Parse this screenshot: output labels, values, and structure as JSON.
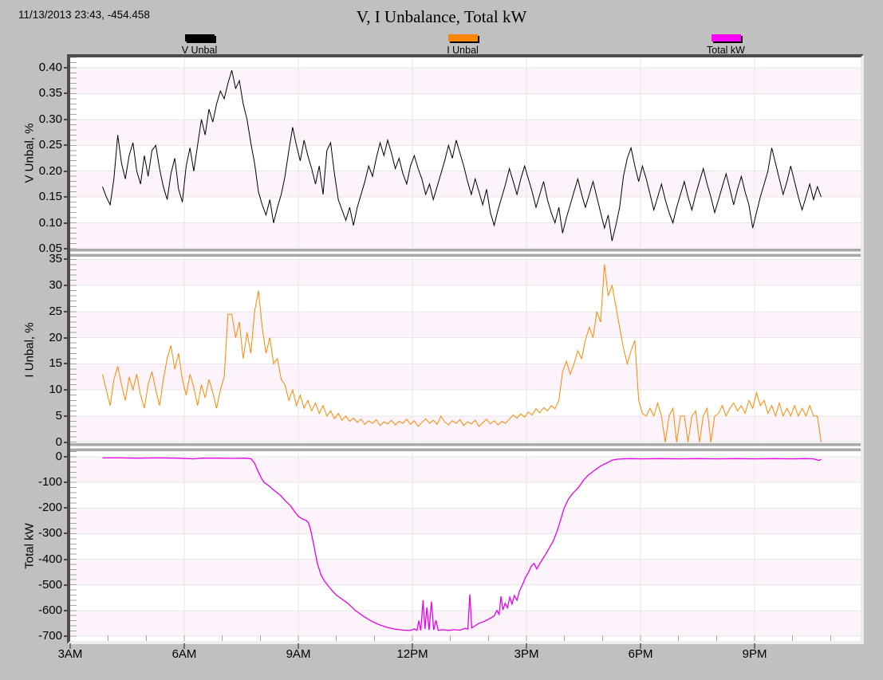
{
  "readout": {
    "text": "11/13/2013 23:43, -454.458"
  },
  "title": "V, I Unbalance, Total kW",
  "legend": {
    "items": [
      {
        "label": "V Unbal",
        "color": "#000000"
      },
      {
        "label": "I Unbal",
        "color": "#ff8600"
      },
      {
        "label": "Total kW",
        "color": "#ff00ff"
      }
    ]
  },
  "chart_data": {
    "type": "line",
    "title": "V, I Unbalance, Total kW",
    "band_colors": [
      "#fcf4fa",
      "#ffffff"
    ],
    "grid": true,
    "x_axis": {
      "unit": "time of day",
      "range_hours": [
        3,
        23.79
      ],
      "minor_step_hours": 1,
      "ticks": [
        {
          "h": 3,
          "label": "3AM"
        },
        {
          "h": 6,
          "label": "6AM"
        },
        {
          "h": 9,
          "label": "9AM"
        },
        {
          "h": 12,
          "label": "12PM"
        },
        {
          "h": 15,
          "label": "3PM"
        },
        {
          "h": 18,
          "label": "6PM"
        },
        {
          "h": 21,
          "label": "9PM"
        }
      ]
    },
    "panels": [
      {
        "name": "v-unbal",
        "ylabel": "V Unbal, %",
        "series_name": "V Unbal",
        "color": "#000000",
        "line_width": 1,
        "ylim": [
          0.05,
          0.42
        ],
        "minor_tick_step": 0.01,
        "yticks": [
          {
            "v": 0.4,
            "label": "0.40"
          },
          {
            "v": 0.35,
            "label": "0.35"
          },
          {
            "v": 0.3,
            "label": "0.30"
          },
          {
            "v": 0.25,
            "label": "0.25"
          },
          {
            "v": 0.2,
            "label": "0.20"
          },
          {
            "v": 0.15,
            "label": "0.15"
          },
          {
            "v": 0.1,
            "label": "0.10"
          },
          {
            "v": 0.05,
            "label": "0.05"
          }
        ],
        "series": {
          "t0": 3.85,
          "dt": 0.1,
          "values": [
            0.17,
            0.15,
            0.135,
            0.185,
            0.27,
            0.215,
            0.185,
            0.23,
            0.255,
            0.2,
            0.175,
            0.23,
            0.19,
            0.24,
            0.25,
            0.205,
            0.17,
            0.145,
            0.195,
            0.225,
            0.165,
            0.14,
            0.21,
            0.245,
            0.2,
            0.25,
            0.3,
            0.27,
            0.32,
            0.295,
            0.33,
            0.355,
            0.34,
            0.37,
            0.395,
            0.36,
            0.375,
            0.33,
            0.3,
            0.255,
            0.215,
            0.16,
            0.135,
            0.115,
            0.145,
            0.1,
            0.13,
            0.155,
            0.19,
            0.24,
            0.285,
            0.25,
            0.22,
            0.26,
            0.23,
            0.205,
            0.175,
            0.21,
            0.155,
            0.24,
            0.255,
            0.195,
            0.145,
            0.125,
            0.105,
            0.13,
            0.095,
            0.13,
            0.155,
            0.18,
            0.21,
            0.19,
            0.225,
            0.255,
            0.23,
            0.26,
            0.235,
            0.205,
            0.225,
            0.195,
            0.175,
            0.21,
            0.23,
            0.205,
            0.185,
            0.155,
            0.175,
            0.145,
            0.17,
            0.195,
            0.22,
            0.25,
            0.225,
            0.26,
            0.235,
            0.21,
            0.18,
            0.155,
            0.185,
            0.16,
            0.135,
            0.165,
            0.12,
            0.095,
            0.125,
            0.15,
            0.175,
            0.205,
            0.18,
            0.155,
            0.185,
            0.21,
            0.185,
            0.16,
            0.13,
            0.155,
            0.18,
            0.145,
            0.12,
            0.1,
            0.13,
            0.08,
            0.11,
            0.135,
            0.16,
            0.185,
            0.155,
            0.13,
            0.155,
            0.18,
            0.15,
            0.12,
            0.09,
            0.115,
            0.065,
            0.095,
            0.13,
            0.19,
            0.225,
            0.245,
            0.21,
            0.18,
            0.21,
            0.185,
            0.155,
            0.125,
            0.15,
            0.175,
            0.145,
            0.12,
            0.1,
            0.13,
            0.155,
            0.18,
            0.15,
            0.125,
            0.155,
            0.18,
            0.205,
            0.175,
            0.15,
            0.12,
            0.145,
            0.17,
            0.195,
            0.165,
            0.135,
            0.165,
            0.19,
            0.16,
            0.135,
            0.09,
            0.12,
            0.15,
            0.175,
            0.2,
            0.245,
            0.215,
            0.185,
            0.155,
            0.18,
            0.21,
            0.18,
            0.15,
            0.125,
            0.15,
            0.175,
            0.145,
            0.17,
            0.15
          ]
        }
      },
      {
        "name": "i-unbal",
        "ylabel": "I Unbal, %",
        "series_name": "I Unbal",
        "color": "#ff8600",
        "line_width": 1,
        "ylim": [
          -0.2,
          35.5
        ],
        "minor_tick_step": 1,
        "yticks": [
          {
            "v": 35,
            "label": "35"
          },
          {
            "v": 30,
            "label": "30"
          },
          {
            "v": 25,
            "label": "25"
          },
          {
            "v": 20,
            "label": "20"
          },
          {
            "v": 15,
            "label": "15"
          },
          {
            "v": 10,
            "label": "10"
          },
          {
            "v": 5,
            "label": "5"
          },
          {
            "v": 0,
            "label": "0"
          }
        ],
        "series": {
          "t0": 3.85,
          "dt": 0.1,
          "values": [
            13,
            10,
            7,
            12,
            14.5,
            11,
            8,
            12.5,
            10,
            13,
            9,
            6.5,
            11,
            13.5,
            10,
            7,
            12,
            16,
            18.5,
            14,
            17,
            12,
            9,
            13,
            10.5,
            7,
            11,
            8.5,
            12,
            9.5,
            6.5,
            10,
            12.5,
            24.5,
            24.5,
            20,
            23,
            16,
            21,
            17,
            25,
            29,
            22,
            17,
            20,
            15,
            16,
            12,
            11,
            8,
            10,
            7,
            9,
            6.5,
            8,
            6,
            7.5,
            5.5,
            7,
            5,
            6,
            4.5,
            5.5,
            4.2,
            5,
            4,
            4.6,
            3.8,
            4.4,
            3.4,
            4.1,
            3.6,
            4.3,
            3.2,
            3.9,
            3.5,
            4.2,
            3.3,
            4.0,
            3.6,
            4.4,
            3.4,
            4.1,
            3.0,
            3.8,
            4.5,
            3.6,
            4.2,
            3.4,
            5.0,
            3.9,
            3.3,
            4.1,
            3.6,
            4.3,
            3.2,
            3.9,
            3.5,
            4.2,
            3.0,
            3.7,
            4.4,
            3.5,
            4.1,
            3.3,
            4.0,
            3.6,
            4.4,
            5.2,
            4.6,
            5.4,
            4.8,
            5.8,
            5.2,
            6.4,
            5.6,
            6.6,
            6.0,
            7.0,
            6.4,
            8.0,
            13.5,
            15.5,
            13,
            15,
            17.5,
            16,
            19.5,
            22,
            20,
            25,
            23,
            34,
            28,
            30,
            26,
            22,
            18,
            15,
            17.5,
            19.5,
            8,
            5.5,
            5,
            6.5,
            5,
            7.5,
            5,
            0,
            5,
            6.5,
            0,
            5,
            5,
            0,
            5,
            6,
            0,
            5,
            6.5,
            0,
            5,
            5.5,
            7,
            5,
            6.5,
            7.5,
            6,
            7,
            5.5,
            8,
            6.5,
            9.5,
            7,
            8,
            5.5,
            7,
            5,
            7.5,
            5,
            6.5,
            5,
            7,
            5,
            6.5,
            5,
            7,
            5,
            5,
            0
          ]
        }
      },
      {
        "name": "total-kw",
        "ylabel": "Total kW",
        "series_name": "Total kW",
        "color": "#e800e8",
        "line_width": 1.3,
        "ylim": [
          -719,
          22
        ],
        "minor_tick_step": 20,
        "yticks": [
          {
            "v": 0,
            "label": "0"
          },
          {
            "v": -100,
            "label": "-100"
          },
          {
            "v": -200,
            "label": "-200"
          },
          {
            "v": -300,
            "label": "-300"
          },
          {
            "v": -400,
            "label": "-400"
          },
          {
            "v": -500,
            "label": "-500"
          },
          {
            "v": -600,
            "label": "-600"
          },
          {
            "v": -700,
            "label": "-700"
          }
        ],
        "series": {
          "points": [
            [
              3.85,
              -4
            ],
            [
              4.3,
              -4
            ],
            [
              4.8,
              -5
            ],
            [
              5.3,
              -4
            ],
            [
              5.8,
              -5
            ],
            [
              6.25,
              -8
            ],
            [
              6.45,
              -5
            ],
            [
              6.9,
              -5
            ],
            [
              7.3,
              -6
            ],
            [
              7.6,
              -5
            ],
            [
              7.76,
              -8
            ],
            [
              7.85,
              -25
            ],
            [
              7.95,
              -60
            ],
            [
              8.03,
              -84
            ],
            [
              8.1,
              -100
            ],
            [
              8.2,
              -110
            ],
            [
              8.3,
              -123
            ],
            [
              8.42,
              -138
            ],
            [
              8.54,
              -152
            ],
            [
              8.66,
              -172
            ],
            [
              8.8,
              -192
            ],
            [
              8.9,
              -214
            ],
            [
              9.0,
              -232
            ],
            [
              9.1,
              -242
            ],
            [
              9.2,
              -248
            ],
            [
              9.27,
              -258
            ],
            [
              9.33,
              -290
            ],
            [
              9.4,
              -340
            ],
            [
              9.5,
              -417
            ],
            [
              9.6,
              -462
            ],
            [
              9.7,
              -488
            ],
            [
              9.8,
              -507
            ],
            [
              9.9,
              -524
            ],
            [
              10.0,
              -540
            ],
            [
              10.15,
              -556
            ],
            [
              10.3,
              -572
            ],
            [
              10.5,
              -600
            ],
            [
              10.7,
              -622
            ],
            [
              10.9,
              -640
            ],
            [
              11.1,
              -654
            ],
            [
              11.33,
              -666
            ],
            [
              11.55,
              -673
            ],
            [
              11.75,
              -677
            ],
            [
              11.95,
              -678
            ],
            [
              12.05,
              -672
            ],
            [
              12.12,
              -678
            ],
            [
              12.17,
              -640
            ],
            [
              12.22,
              -678
            ],
            [
              12.28,
              -560
            ],
            [
              12.33,
              -672
            ],
            [
              12.38,
              -588
            ],
            [
              12.44,
              -676
            ],
            [
              12.5,
              -565
            ],
            [
              12.56,
              -676
            ],
            [
              12.62,
              -638
            ],
            [
              12.68,
              -678
            ],
            [
              12.8,
              -675
            ],
            [
              12.95,
              -678
            ],
            [
              13.1,
              -675
            ],
            [
              13.25,
              -677
            ],
            [
              13.38,
              -670
            ],
            [
              13.46,
              -673
            ],
            [
              13.51,
              -537
            ],
            [
              13.56,
              -668
            ],
            [
              13.65,
              -660
            ],
            [
              13.75,
              -650
            ],
            [
              13.85,
              -645
            ],
            [
              13.95,
              -638
            ],
            [
              14.05,
              -630
            ],
            [
              14.15,
              -622
            ],
            [
              14.22,
              -600
            ],
            [
              14.28,
              -615
            ],
            [
              14.33,
              -545
            ],
            [
              14.38,
              -598
            ],
            [
              14.44,
              -572
            ],
            [
              14.5,
              -590
            ],
            [
              14.56,
              -548
            ],
            [
              14.62,
              -575
            ],
            [
              14.68,
              -542
            ],
            [
              14.75,
              -560
            ],
            [
              14.82,
              -522
            ],
            [
              14.9,
              -498
            ],
            [
              14.97,
              -472
            ],
            [
              15.05,
              -452
            ],
            [
              15.12,
              -428
            ],
            [
              15.2,
              -416
            ],
            [
              15.27,
              -438
            ],
            [
              15.34,
              -420
            ],
            [
              15.42,
              -400
            ],
            [
              15.5,
              -382
            ],
            [
              15.6,
              -356
            ],
            [
              15.7,
              -330
            ],
            [
              15.8,
              -292
            ],
            [
              15.9,
              -246
            ],
            [
              15.99,
              -200
            ],
            [
              16.1,
              -166
            ],
            [
              16.22,
              -142
            ],
            [
              16.36,
              -121
            ],
            [
              16.5,
              -92
            ],
            [
              16.62,
              -72
            ],
            [
              16.78,
              -54
            ],
            [
              16.95,
              -36
            ],
            [
              17.05,
              -28
            ],
            [
              17.14,
              -22
            ],
            [
              17.25,
              -13
            ],
            [
              17.4,
              -9
            ],
            [
              17.7,
              -7
            ],
            [
              18.0,
              -8
            ],
            [
              18.5,
              -7
            ],
            [
              19.0,
              -8
            ],
            [
              19.5,
              -7
            ],
            [
              20.0,
              -8
            ],
            [
              20.5,
              -7
            ],
            [
              21.0,
              -8
            ],
            [
              21.5,
              -7
            ],
            [
              22.0,
              -8
            ],
            [
              22.3,
              -7
            ],
            [
              22.55,
              -8
            ],
            [
              22.7,
              -14
            ],
            [
              22.75,
              -9
            ]
          ]
        }
      }
    ]
  }
}
